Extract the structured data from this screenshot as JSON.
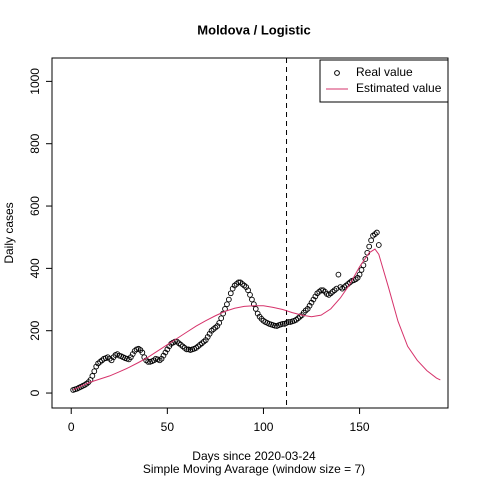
{
  "chart_data": {
    "type": "line",
    "title": "Moldova / Logistic",
    "x_label": "Days since 2020-03-24",
    "subtitle": "Simple Moving Avarage (window size = 7)",
    "y_label": "Daily cases",
    "xlim": [
      -10,
      196
    ],
    "ylim": [
      -48,
      1075
    ],
    "xticks": [
      0,
      50,
      100,
      150
    ],
    "yticks": [
      0,
      200,
      400,
      600,
      800,
      1000
    ],
    "vline": 112,
    "legend": "top-right",
    "series": [
      {
        "name": "Real value",
        "style": "points",
        "color": "#000000",
        "x": [
          1,
          2,
          3,
          4,
          5,
          6,
          7,
          8,
          9,
          10,
          11,
          12,
          13,
          14,
          15,
          16,
          17,
          18,
          19,
          20,
          21,
          22,
          23,
          24,
          25,
          26,
          27,
          28,
          29,
          30,
          31,
          32,
          33,
          34,
          35,
          36,
          37,
          38,
          39,
          40,
          41,
          42,
          43,
          44,
          45,
          46,
          47,
          48,
          49,
          50,
          51,
          52,
          53,
          54,
          55,
          56,
          57,
          58,
          59,
          60,
          61,
          62,
          63,
          64,
          65,
          66,
          67,
          68,
          69,
          70,
          71,
          72,
          73,
          74,
          75,
          76,
          77,
          78,
          79,
          80,
          81,
          82,
          83,
          84,
          85,
          86,
          87,
          88,
          89,
          90,
          91,
          92,
          93,
          94,
          95,
          96,
          97,
          98,
          99,
          100,
          101,
          102,
          103,
          104,
          105,
          106,
          107,
          108,
          109,
          110,
          111,
          112,
          113,
          114,
          115,
          116,
          117,
          118,
          119,
          120,
          121,
          122,
          123,
          124,
          125,
          126,
          127,
          128,
          129,
          130,
          131,
          132,
          133,
          134,
          135,
          136,
          137,
          138,
          139,
          140,
          141,
          142,
          143,
          144,
          145,
          146,
          147,
          148,
          149,
          150,
          151,
          152,
          153,
          154,
          155,
          156,
          157,
          158,
          159,
          160
        ],
        "values": [
          10,
          12,
          14,
          17,
          20,
          23,
          26,
          30,
          35,
          42,
          55,
          70,
          85,
          95,
          100,
          105,
          110,
          112,
          115,
          110,
          105,
          115,
          122,
          125,
          120,
          118,
          115,
          112,
          110,
          108,
          115,
          125,
          135,
          140,
          142,
          138,
          130,
          115,
          105,
          100,
          100,
          102,
          105,
          110,
          108,
          105,
          110,
          120,
          130,
          140,
          150,
          158,
          162,
          165,
          165,
          160,
          155,
          150,
          145,
          140,
          140,
          138,
          140,
          142,
          145,
          150,
          155,
          160,
          165,
          170,
          180,
          190,
          200,
          205,
          210,
          215,
          225,
          240,
          255,
          270,
          285,
          300,
          320,
          335,
          345,
          350,
          355,
          355,
          350,
          345,
          340,
          330,
          315,
          300,
          285,
          270,
          255,
          245,
          238,
          232,
          228,
          225,
          222,
          220,
          218,
          216,
          215,
          218,
          220,
          222,
          222,
          225,
          228,
          228,
          230,
          232,
          235,
          240,
          245,
          250,
          258,
          265,
          270,
          280,
          290,
          300,
          310,
          320,
          325,
          330,
          330,
          325,
          318,
          315,
          320,
          325,
          330,
          335,
          380,
          340,
          335,
          340,
          345,
          350,
          355,
          360,
          362,
          365,
          370,
          380,
          395,
          410,
          430,
          450,
          470,
          490,
          505,
          510,
          515,
          475
        ]
      },
      {
        "name": "Estimated value",
        "style": "line",
        "color": "#d6336b",
        "x": [
          1,
          5,
          10,
          15,
          20,
          25,
          30,
          35,
          40,
          45,
          50,
          55,
          60,
          65,
          70,
          75,
          80,
          85,
          90,
          95,
          100,
          105,
          110,
          115,
          120,
          125,
          130,
          135,
          140,
          145,
          150,
          155,
          158,
          160,
          165,
          170,
          175,
          180,
          185,
          190,
          192
        ],
        "values": [
          10,
          22,
          35,
          45,
          55,
          68,
          82,
          98,
          115,
          135,
          155,
          175,
          195,
          215,
          232,
          248,
          262,
          272,
          278,
          280,
          280,
          275,
          268,
          258,
          250,
          245,
          250,
          270,
          305,
          350,
          405,
          450,
          462,
          445,
          340,
          230,
          150,
          105,
          72,
          48,
          42
        ]
      }
    ]
  }
}
